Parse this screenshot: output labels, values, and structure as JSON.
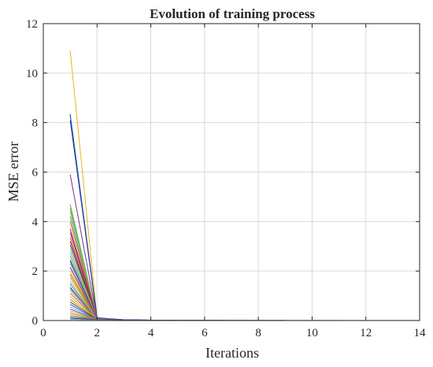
{
  "chart_data": {
    "type": "line",
    "title": "Evolution of training process",
    "xlabel": "Iterations",
    "ylabel": "MSE error",
    "xlim": [
      0,
      14
    ],
    "ylim": [
      0,
      12
    ],
    "xticks": [
      0,
      2,
      4,
      6,
      8,
      10,
      12,
      14
    ],
    "yticks": [
      0,
      2,
      4,
      6,
      8,
      10,
      12
    ],
    "grid": true,
    "box": true,
    "series": [
      {
        "color": "#EDB120",
        "x": [
          1,
          2,
          3,
          4,
          5,
          6
        ],
        "y": [
          10.9,
          0.12,
          0.03,
          0.015,
          0.01,
          0.008
        ]
      },
      {
        "color": "#7E2F8E",
        "x": [
          1,
          2,
          3,
          4,
          5,
          6,
          7,
          8,
          9
        ],
        "y": [
          8.35,
          0.1,
          0.03,
          0.015,
          0.01,
          0.008,
          0.006,
          0.005,
          0.005
        ]
      },
      {
        "color": "#0072BD",
        "x": [
          1,
          2,
          3,
          4,
          5
        ],
        "y": [
          8.3,
          0.11,
          0.03,
          0.015,
          0.01
        ]
      },
      {
        "color": "#2A3A8F",
        "x": [
          1,
          2,
          3,
          4,
          5
        ],
        "y": [
          8.1,
          0.1,
          0.03,
          0.015,
          0.01
        ]
      },
      {
        "color": "#7E2F8E",
        "x": [
          1,
          2,
          3,
          4
        ],
        "y": [
          5.9,
          0.09,
          0.02,
          0.01
        ]
      },
      {
        "color": "#77AC30",
        "x": [
          1,
          2,
          3,
          4
        ],
        "y": [
          4.7,
          0.09,
          0.02,
          0.01
        ]
      },
      {
        "color": "#77AC30",
        "x": [
          1,
          2,
          3
        ],
        "y": [
          4.55,
          0.08,
          0.02
        ]
      },
      {
        "color": "#4DBEEE",
        "x": [
          1,
          2,
          3
        ],
        "y": [
          4.4,
          0.08,
          0.02
        ]
      },
      {
        "color": "#77AC30",
        "x": [
          1,
          2,
          3
        ],
        "y": [
          4.2,
          0.08,
          0.02
        ]
      },
      {
        "color": "#D95319",
        "x": [
          1,
          2,
          3
        ],
        "y": [
          4.0,
          0.07,
          0.02
        ]
      },
      {
        "color": "#A2142F",
        "x": [
          1,
          2,
          3
        ],
        "y": [
          3.7,
          0.07,
          0.02
        ]
      },
      {
        "color": "#7E2F8E",
        "x": [
          1,
          2,
          3
        ],
        "y": [
          3.55,
          0.07,
          0.02
        ]
      },
      {
        "color": "#D95319",
        "x": [
          1,
          2,
          3
        ],
        "y": [
          3.35,
          0.06,
          0.02
        ]
      },
      {
        "color": "#A2142F",
        "x": [
          1,
          2,
          3
        ],
        "y": [
          3.2,
          0.06,
          0.02
        ]
      },
      {
        "color": "#0072BD",
        "x": [
          1,
          2,
          3
        ],
        "y": [
          3.05,
          0.06,
          0.02
        ]
      },
      {
        "color": "#EDB120",
        "x": [
          1,
          2,
          3
        ],
        "y": [
          2.9,
          0.06,
          0.02
        ]
      },
      {
        "color": "#4DBEEE",
        "x": [
          1,
          2,
          3
        ],
        "y": [
          2.75,
          0.05,
          0.02
        ]
      },
      {
        "color": "#77AC30",
        "x": [
          1,
          2,
          3
        ],
        "y": [
          2.6,
          0.05,
          0.02
        ]
      },
      {
        "color": "#0072BD",
        "x": [
          1,
          2,
          3
        ],
        "y": [
          2.45,
          0.05,
          0.02
        ]
      },
      {
        "color": "#4DBEEE",
        "x": [
          1,
          2,
          3
        ],
        "y": [
          2.3,
          0.05,
          0.02
        ]
      },
      {
        "color": "#A2142F",
        "x": [
          1,
          2,
          3
        ],
        "y": [
          2.15,
          0.05,
          0.02
        ]
      },
      {
        "color": "#EDB120",
        "x": [
          1,
          2,
          3
        ],
        "y": [
          2.0,
          0.05,
          0.02
        ]
      },
      {
        "color": "#D95319",
        "x": [
          1,
          2,
          3
        ],
        "y": [
          1.88,
          0.04,
          0.02
        ]
      },
      {
        "color": "#77AC30",
        "x": [
          1,
          2,
          3
        ],
        "y": [
          1.75,
          0.04,
          0.02
        ]
      },
      {
        "color": "#EDB120",
        "x": [
          1,
          2,
          3
        ],
        "y": [
          1.6,
          0.04,
          0.02
        ]
      },
      {
        "color": "#7E2F8E",
        "x": [
          1,
          2,
          3
        ],
        "y": [
          1.48,
          0.04,
          0.02
        ]
      },
      {
        "color": "#0072BD",
        "x": [
          1,
          2,
          3
        ],
        "y": [
          1.35,
          0.04,
          0.02
        ]
      },
      {
        "color": "#4DBEEE",
        "x": [
          1,
          2,
          3
        ],
        "y": [
          1.22,
          0.04,
          0.02
        ]
      },
      {
        "color": "#D95319",
        "x": [
          1,
          2,
          3
        ],
        "y": [
          1.1,
          0.04,
          0.02
        ]
      },
      {
        "color": "#EDB120",
        "x": [
          1,
          2,
          3
        ],
        "y": [
          0.98,
          0.04,
          0.02
        ]
      },
      {
        "color": "#77AC30",
        "x": [
          1,
          2,
          3
        ],
        "y": [
          0.86,
          0.04,
          0.02
        ]
      },
      {
        "color": "#A2142F",
        "x": [
          1,
          2,
          3
        ],
        "y": [
          0.75,
          0.04,
          0.02
        ]
      },
      {
        "color": "#0072BD",
        "x": [
          1,
          2,
          3
        ],
        "y": [
          0.65,
          0.03,
          0.02
        ]
      },
      {
        "color": "#4DBEEE",
        "x": [
          1,
          2,
          3
        ],
        "y": [
          0.55,
          0.03,
          0.02
        ]
      },
      {
        "color": "#7E2F8E",
        "x": [
          1,
          2,
          3
        ],
        "y": [
          0.46,
          0.03,
          0.02
        ]
      },
      {
        "color": "#EDB120",
        "x": [
          1,
          2,
          3
        ],
        "y": [
          0.38,
          0.03,
          0.02
        ]
      },
      {
        "color": "#D95319",
        "x": [
          1,
          2,
          3
        ],
        "y": [
          0.3,
          0.03,
          0.02
        ]
      },
      {
        "color": "#77AC30",
        "x": [
          1,
          2,
          3
        ],
        "y": [
          0.22,
          0.03,
          0.02
        ]
      },
      {
        "color": "#0072BD",
        "x": [
          1,
          2,
          3
        ],
        "y": [
          0.15,
          0.03,
          0.02
        ]
      },
      {
        "color": "#A2142F",
        "x": [
          1,
          2,
          3
        ],
        "y": [
          0.09,
          0.03,
          0.02
        ]
      },
      {
        "color": "#4DBEEE",
        "x": [
          1,
          2,
          3
        ],
        "y": [
          0.05,
          0.02,
          0.01
        ]
      },
      {
        "color": "#D95319",
        "x": [
          1,
          2,
          3,
          4,
          5,
          6,
          7,
          8,
          9,
          10,
          11
        ],
        "y": [
          1.3,
          0.05,
          0.02,
          0.012,
          0.008,
          0.006,
          0.005,
          0.004,
          0.004,
          0.003,
          0.003
        ]
      },
      {
        "color": "#4DBEEE",
        "x": [
          1,
          2,
          3,
          4,
          5,
          6,
          7,
          8,
          9,
          10,
          11,
          12,
          13,
          14
        ],
        "y": [
          1.5,
          0.06,
          0.02,
          0.012,
          0.008,
          0.006,
          0.005,
          0.004,
          0.004,
          0.003,
          0.003,
          0.003,
          0.003,
          0.003
        ]
      },
      {
        "color": "#7E2F8E",
        "x": [
          1,
          2,
          3,
          4,
          5,
          6,
          7,
          8,
          9
        ],
        "y": [
          2.4,
          0.07,
          0.02,
          0.012,
          0.008,
          0.006,
          0.005,
          0.004,
          0.004
        ]
      }
    ]
  }
}
